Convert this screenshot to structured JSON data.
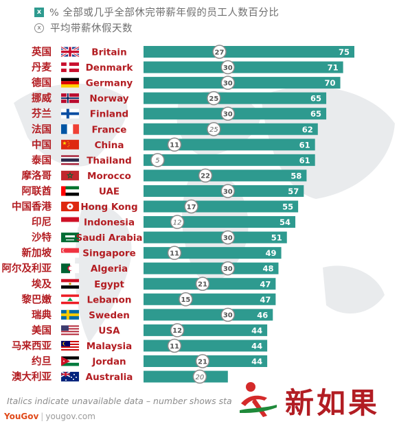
{
  "legend": {
    "box_symbol": "x",
    "pct_label": "% 全部或几乎全部休完带薪年假的员工人数百分比",
    "circle_symbol": "x",
    "days_label": "平均带薪休假天数"
  },
  "colors": {
    "bar": "#2e9a8f",
    "label_red": "#b31d22",
    "circle_border": "#888888"
  },
  "chart_data": {
    "type": "bar",
    "orientation": "horizontal",
    "series": [
      {
        "name": "% 全部或几乎全部休完带薪年假的员工人数百分比",
        "values": [
          75,
          71,
          70,
          65,
          65,
          62,
          61,
          61,
          58,
          57,
          55,
          54,
          51,
          49,
          48,
          47,
          47,
          46,
          44,
          44,
          44,
          null
        ]
      },
      {
        "name": "平均带薪休假天数",
        "values": [
          27,
          30,
          30,
          25,
          30,
          25,
          11,
          5,
          22,
          30,
          17,
          12,
          30,
          11,
          30,
          21,
          15,
          30,
          12,
          11,
          21,
          20
        ]
      }
    ],
    "countries": [
      {
        "cn": "英国",
        "en": "Britain",
        "flag": "uk-flag",
        "pct": 75,
        "days": 27,
        "estimated": false
      },
      {
        "cn": "丹麦",
        "en": "Denmark",
        "flag": "denmark-flag",
        "pct": 71,
        "days": 30,
        "estimated": false
      },
      {
        "cn": "德国",
        "en": "Germany",
        "flag": "germany-flag",
        "pct": 70,
        "days": 30,
        "estimated": false
      },
      {
        "cn": "挪威",
        "en": "Norway",
        "flag": "norway-flag",
        "pct": 65,
        "days": 25,
        "estimated": false
      },
      {
        "cn": "芬兰",
        "en": "Finland",
        "flag": "finland-flag",
        "pct": 65,
        "days": 30,
        "estimated": false
      },
      {
        "cn": "法国",
        "en": "France",
        "flag": "france-flag",
        "pct": 62,
        "days": 25,
        "estimated": true
      },
      {
        "cn": "中国",
        "en": "China",
        "flag": "china-flag",
        "pct": 61,
        "days": 11,
        "estimated": false
      },
      {
        "cn": "泰国",
        "en": "Thailand",
        "flag": "thailand-flag",
        "pct": 61,
        "days": 5,
        "estimated": true
      },
      {
        "cn": "摩洛哥",
        "en": "Morocco",
        "flag": "morocco-flag",
        "pct": 58,
        "days": 22,
        "estimated": false
      },
      {
        "cn": "阿联酋",
        "en": "UAE",
        "flag": "uae-flag",
        "pct": 57,
        "days": 30,
        "estimated": false
      },
      {
        "cn": "中国香港",
        "en": "Hong Kong",
        "flag": "hongkong-flag",
        "pct": 55,
        "days": 17,
        "estimated": false
      },
      {
        "cn": "印尼",
        "en": "Indonesia",
        "flag": "indonesia-flag",
        "pct": 54,
        "days": 12,
        "estimated": true
      },
      {
        "cn": "沙特",
        "en": "Saudi Arabia",
        "flag": "saudi-flag",
        "pct": 51,
        "days": 30,
        "estimated": false
      },
      {
        "cn": "新加坡",
        "en": "Singapore",
        "flag": "singapore-flag",
        "pct": 49,
        "days": 11,
        "estimated": false
      },
      {
        "cn": "阿尔及利亚",
        "en": "Algeria",
        "flag": "algeria-flag",
        "pct": 48,
        "days": 30,
        "estimated": false
      },
      {
        "cn": "埃及",
        "en": "Egypt",
        "flag": "egypt-flag",
        "pct": 47,
        "days": 21,
        "estimated": false
      },
      {
        "cn": "黎巴嫩",
        "en": "Lebanon",
        "flag": "lebanon-flag",
        "pct": 47,
        "days": 15,
        "estimated": false
      },
      {
        "cn": "瑞典",
        "en": "Sweden",
        "flag": "sweden-flag",
        "pct": 46,
        "days": 30,
        "estimated": false
      },
      {
        "cn": "美国",
        "en": "USA",
        "flag": "usa-flag",
        "pct": 44,
        "days": 12,
        "estimated": false
      },
      {
        "cn": "马来西亚",
        "en": "Malaysia",
        "flag": "malaysia-flag",
        "pct": 44,
        "days": 11,
        "estimated": false
      },
      {
        "cn": "约旦",
        "en": "Jordan",
        "flag": "jordan-flag",
        "pct": 44,
        "days": 21,
        "estimated": false
      },
      {
        "cn": "澳大利亚",
        "en": "Australia",
        "flag": "australia-flag",
        "pct": null,
        "pct_display": 30,
        "days": 20,
        "estimated": true
      }
    ],
    "xlim": [
      0,
      75
    ],
    "grid": false
  },
  "footnote": "Italics indicate unavailable data – number shows sta",
  "brand": {
    "name": "YouGov",
    "url": "yougov.com"
  },
  "watermark": {
    "text": "新如果",
    "icon": "runner-logo"
  }
}
